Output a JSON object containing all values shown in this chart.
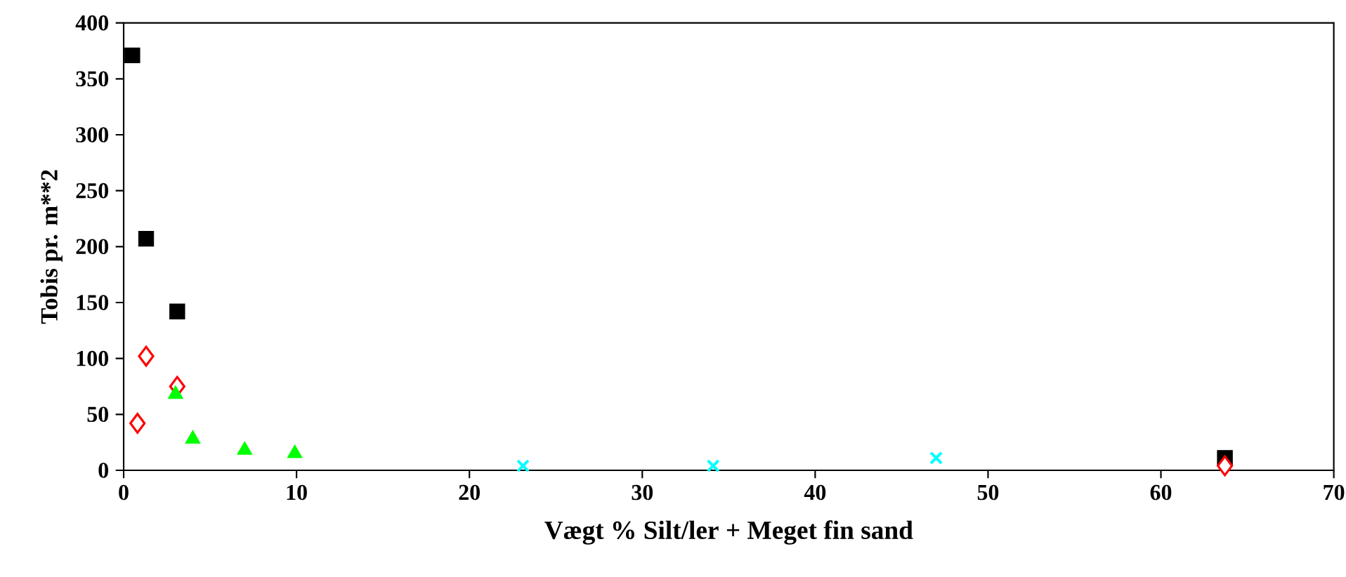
{
  "chart_data": {
    "type": "scatter",
    "xlabel": "Vægt %  Silt/ler + Meget fin sand",
    "ylabel": "Tobis pr. m**2",
    "xlim": [
      0,
      70
    ],
    "ylim": [
      0,
      400
    ],
    "xticks": [
      0,
      10,
      20,
      30,
      40,
      50,
      60,
      70
    ],
    "yticks": [
      0,
      50,
      100,
      150,
      200,
      250,
      300,
      350,
      400
    ],
    "grid": false,
    "series": [
      {
        "color": "#000000",
        "marker": "square",
        "x": [
          0.5,
          1.3,
          3.1,
          63.7
        ],
        "values": [
          371,
          207,
          142,
          11
        ]
      },
      {
        "color": "#ff0000",
        "marker": "diamond",
        "x": [
          0.8,
          1.3,
          3.1,
          63.7
        ],
        "values": [
          42,
          102,
          75,
          4
        ]
      },
      {
        "color": "#00ff00",
        "marker": "triangle",
        "x": [
          3.0,
          4.0,
          7.0,
          9.9
        ],
        "values": [
          68,
          28,
          18,
          15
        ]
      },
      {
        "color": "#00ffff",
        "marker": "cross",
        "x": [
          23.1,
          34.1,
          47.0
        ],
        "values": [
          4,
          4,
          11
        ]
      }
    ]
  }
}
